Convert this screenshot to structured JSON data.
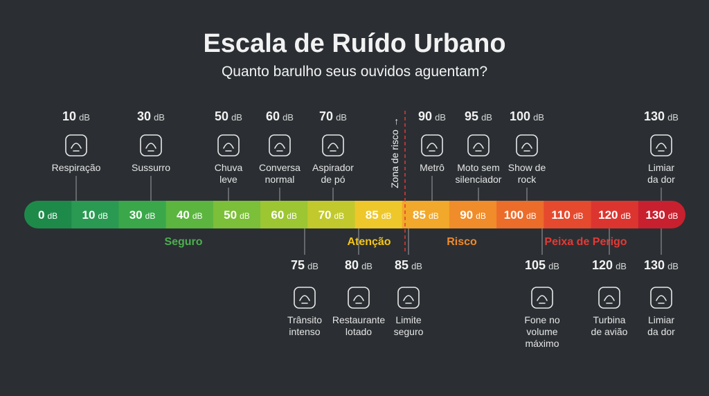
{
  "title": "Escala de Ruído Urbano",
  "subtitle": "Quanto barulho seus ouvidos aguentam?",
  "unit": "dB",
  "risk_marker": "Zona de risco →",
  "scale": [
    0,
    10,
    30,
    40,
    50,
    60,
    70,
    85,
    85,
    90,
    100,
    110,
    120,
    130
  ],
  "zones": [
    "Seguro",
    "Atenção",
    "Risco",
    "Peixa de Perigo"
  ],
  "top_items": [
    {
      "level": 10,
      "label": [
        "Respiração"
      ]
    },
    {
      "level": 30,
      "label": [
        "Sussurro"
      ]
    },
    {
      "level": 50,
      "label": [
        "Chuva",
        "leve"
      ]
    },
    {
      "level": 60,
      "label": [
        "Conversa",
        "normal"
      ]
    },
    {
      "level": 70,
      "label": [
        "Aspirador",
        "de pó"
      ]
    },
    {
      "level": 90,
      "label": [
        "Metrô"
      ]
    },
    {
      "level": 95,
      "label": [
        "Moto sem",
        "silenciador"
      ]
    },
    {
      "level": 100,
      "label": [
        "Show de",
        "rock"
      ]
    },
    {
      "level": 130,
      "label": [
        "Limiar",
        "da dor"
      ]
    }
  ],
  "bottom_items": [
    {
      "level": 75,
      "label": [
        "Trânsito",
        "intenso"
      ]
    },
    {
      "level": 80,
      "label": [
        "Restaurante",
        "lotado"
      ]
    },
    {
      "level": 85,
      "label": [
        "Limite",
        "seguro"
      ]
    },
    {
      "level": 105,
      "label": [
        "Fone no",
        "volume",
        "máximo"
      ]
    },
    {
      "level": 120,
      "label": [
        "Turbina",
        "de avião"
      ]
    },
    {
      "level": 130,
      "label": [
        "Limiar",
        "da dor"
      ]
    }
  ]
}
